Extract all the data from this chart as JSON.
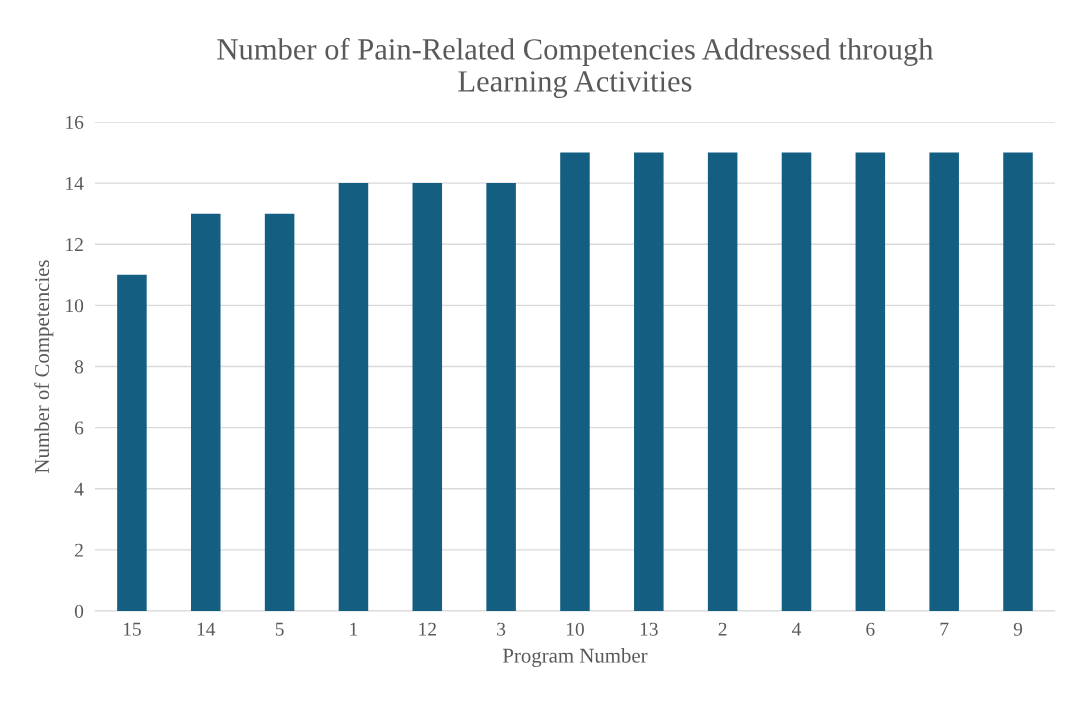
{
  "chart_data": {
    "type": "bar",
    "title": "Number of Pain-Related Competencies Addressed through\nLearning Activities",
    "xlabel": "Program Number",
    "ylabel": "Number of Competencies",
    "categories": [
      "15",
      "14",
      "5",
      "1",
      "12",
      "3",
      "10",
      "13",
      "2",
      "4",
      "6",
      "7",
      "9"
    ],
    "values": [
      11,
      13,
      13,
      14,
      14,
      14,
      15,
      15,
      15,
      15,
      15,
      15,
      15
    ],
    "color": "#145e82",
    "ylim": [
      0,
      16
    ],
    "yticks": [
      0,
      2,
      4,
      6,
      8,
      10,
      12,
      14,
      16
    ],
    "grid": "y"
  }
}
